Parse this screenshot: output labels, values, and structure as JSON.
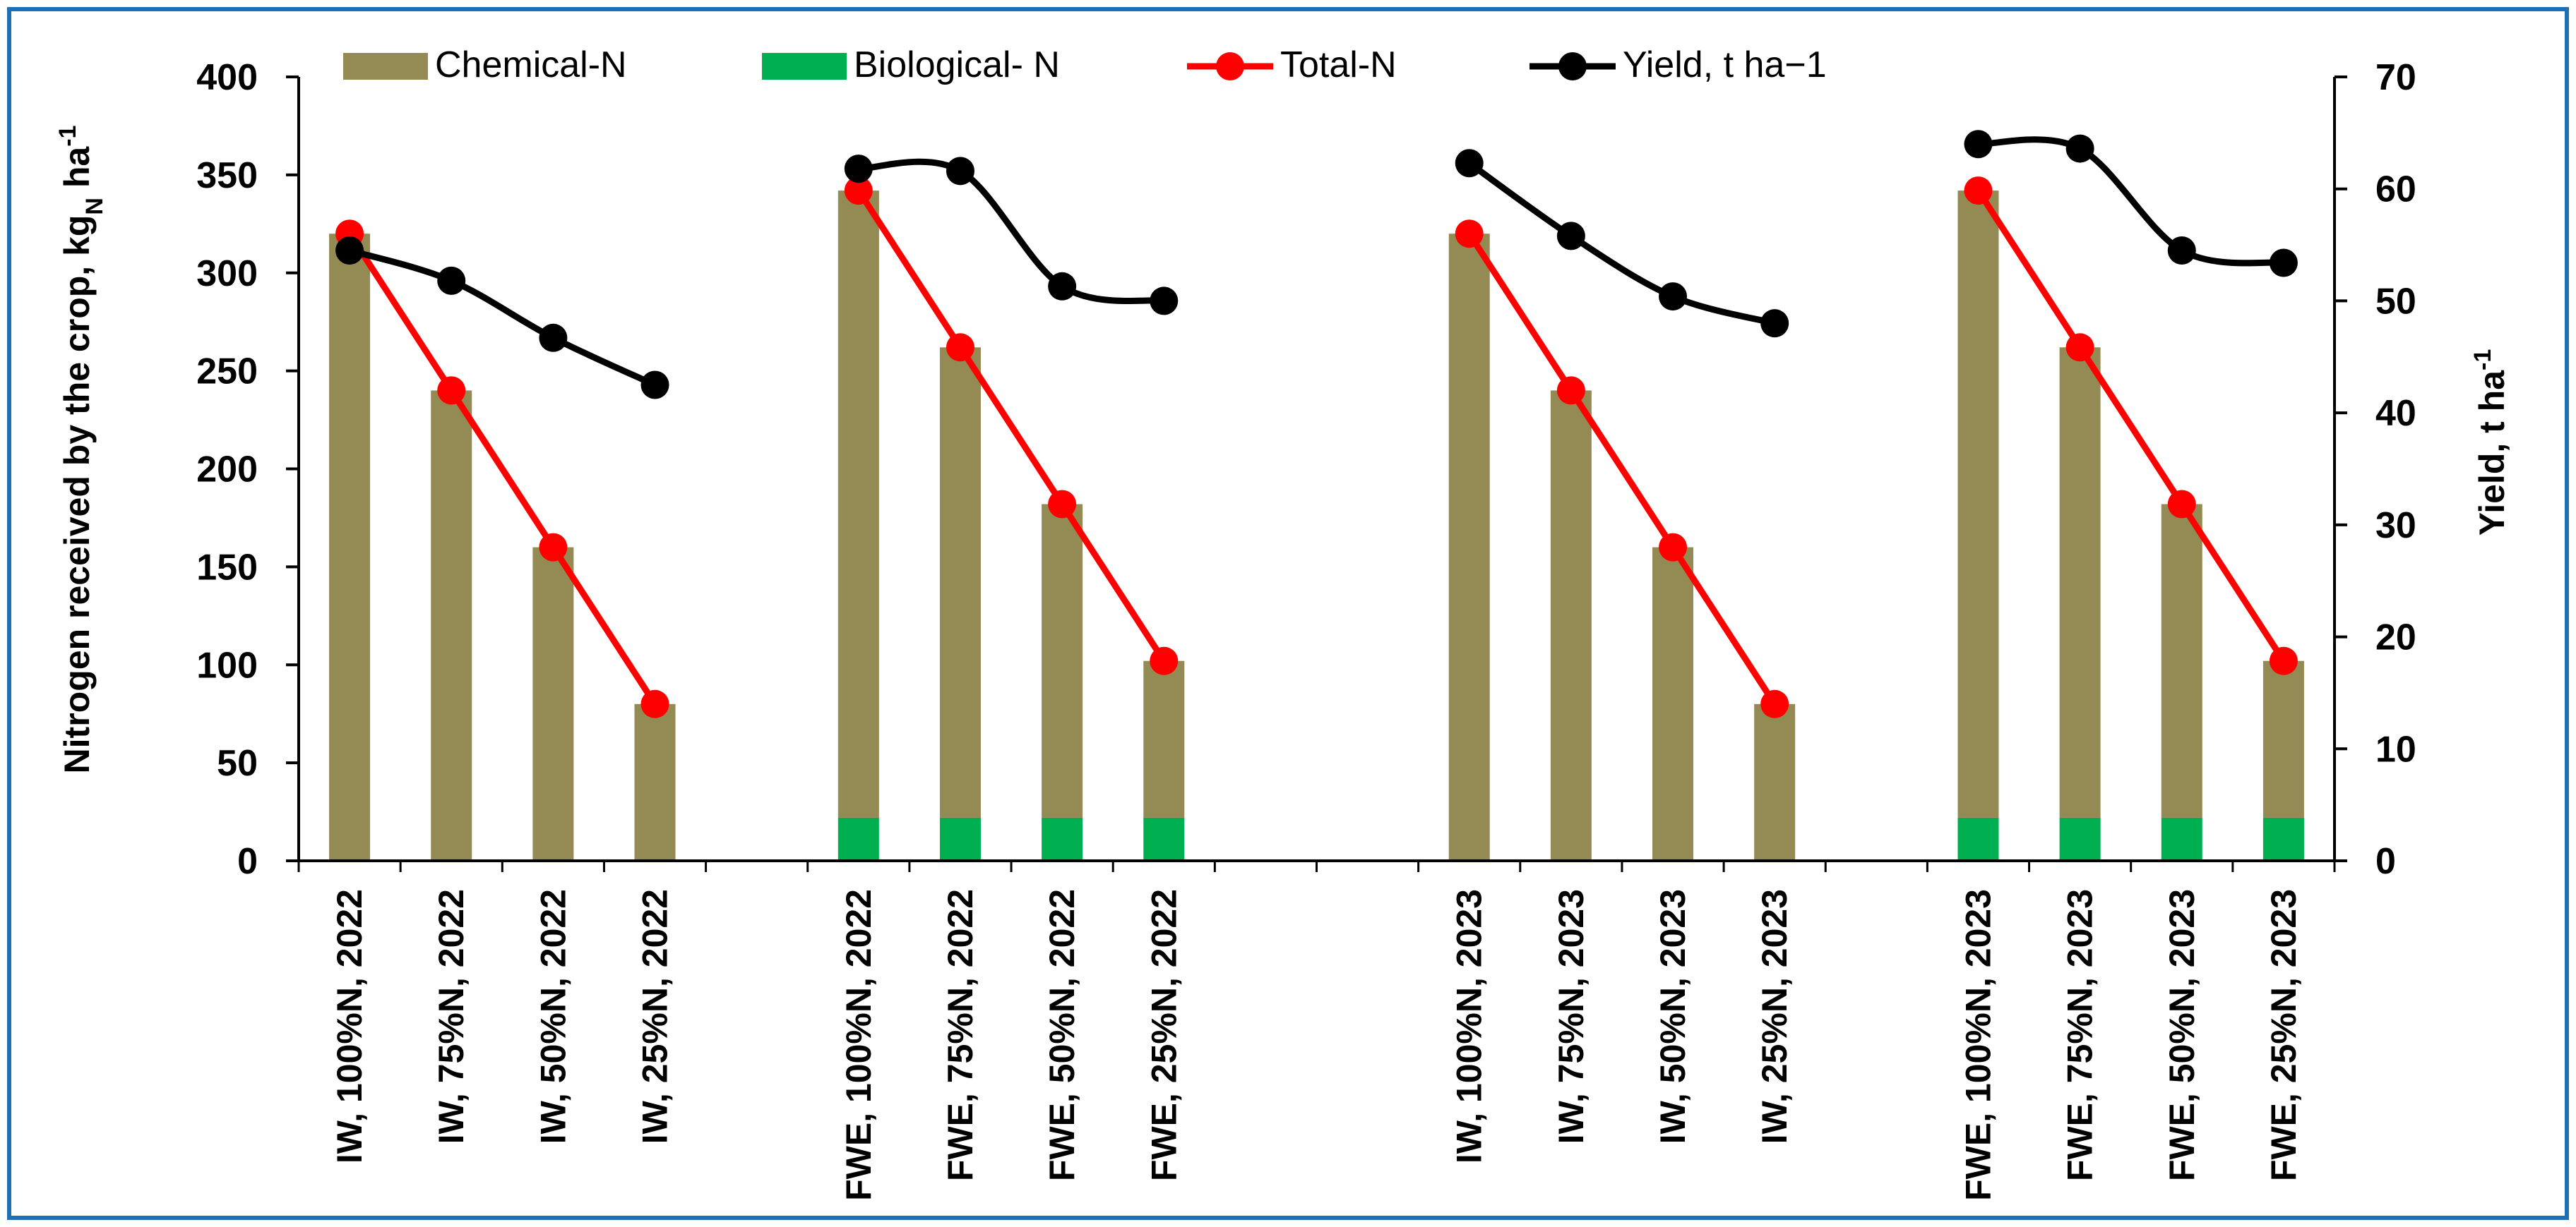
{
  "chart_data": {
    "type": "bar",
    "categories": [
      "IW, 100%N, 2022",
      "IW, 75%N, 2022",
      "IW, 50%N, 2022",
      "IW, 25%N, 2022",
      "FWE, 100%N, 2022",
      "FWE, 75%N, 2022",
      "FWE, 50%N, 2022",
      "FWE, 25%N, 2022",
      "IW, 100%N, 2023",
      "IW, 75%N, 2023",
      "IW, 50%N, 2023",
      "IW, 25%N, 2023",
      "FWE, 100%N, 2023",
      "FWE, 75%N, 2023",
      "FWE, 50%N, 2023",
      "FWE, 25%N, 2023"
    ],
    "series": [
      {
        "name": "Chemical-N",
        "type": "bar",
        "axis": "left",
        "color": "#948a54",
        "values": [
          320,
          240,
          160,
          80,
          320,
          240,
          160,
          80,
          320,
          240,
          160,
          80,
          320,
          240,
          160,
          80
        ]
      },
      {
        "name": "Biological- N",
        "type": "bar",
        "axis": "left",
        "color": "#00b050",
        "values": [
          0,
          0,
          0,
          0,
          22,
          22,
          22,
          22,
          0,
          0,
          0,
          0,
          22,
          22,
          22,
          22
        ]
      },
      {
        "name": "Total-N",
        "type": "line",
        "axis": "left",
        "color": "#ff0000",
        "values": [
          320,
          240,
          160,
          80,
          342,
          262,
          182,
          102,
          320,
          240,
          160,
          80,
          342,
          262,
          182,
          102
        ]
      },
      {
        "name": "Yield, t ha−1",
        "type": "line",
        "axis": "right",
        "color": "#000000",
        "smooth": true,
        "values": [
          54.5,
          51.8,
          46.7,
          42.5,
          61.8,
          61.6,
          51.3,
          50.0,
          62.3,
          55.8,
          50.4,
          48.0,
          64.0,
          63.6,
          54.5,
          53.4
        ]
      }
    ],
    "ylabel": "Nitrogen received by the crop, kg",
    "ylabel_sub": "N",
    "ylabel_tail": " ha",
    "ylabel_sup": "-1",
    "y2label": "Yield, t ha",
    "y2label_sup": "-1",
    "ylim": [
      0,
      400
    ],
    "y2lim": [
      0,
      70
    ],
    "yticks": [
      0,
      50,
      100,
      150,
      200,
      250,
      300,
      350,
      400
    ],
    "y2ticks": [
      0,
      10,
      20,
      30,
      40,
      50,
      60,
      70
    ],
    "grid": false,
    "stacked": true,
    "legend_position": "top"
  },
  "colors": {
    "border": "#1f6fb6",
    "axis": "#000000"
  }
}
